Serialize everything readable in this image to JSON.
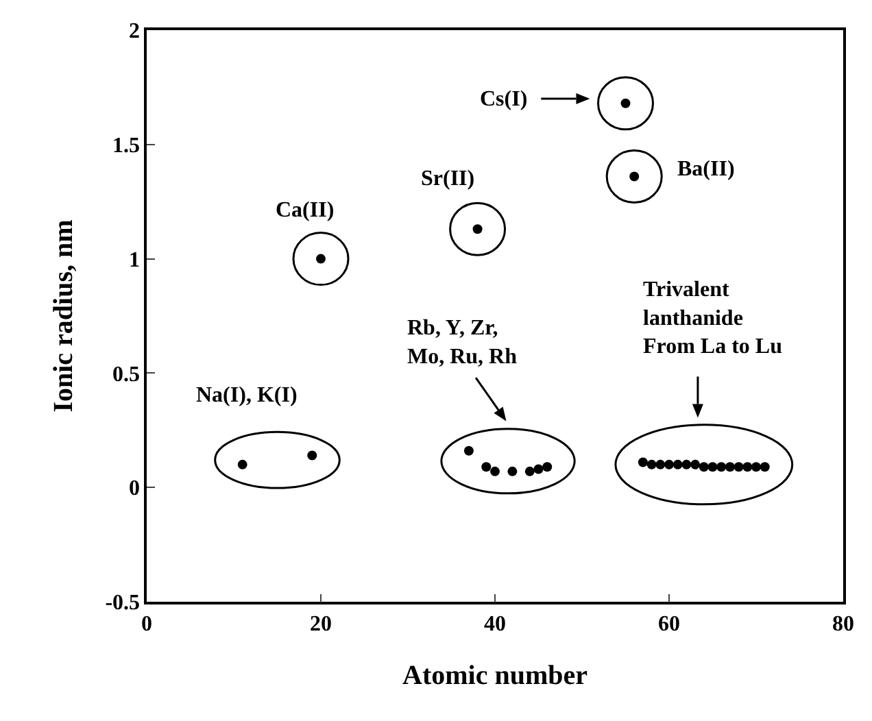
{
  "chart_data": {
    "type": "scatter",
    "xlabel": "Atomic number",
    "ylabel": "Ionic radius, nm",
    "xlim": [
      0,
      80
    ],
    "xticks": [
      0,
      20,
      40,
      60,
      80
    ],
    "ylim": [
      -0.5,
      2
    ],
    "yticks": [
      -0.5,
      0,
      0.5,
      1,
      1.5,
      2
    ],
    "grid": false,
    "marker": "circle",
    "series": [
      {
        "color": "#000000",
        "x": [
          55
        ],
        "values": [
          1.68
        ]
      },
      {
        "color": "#000000",
        "x": [
          56
        ],
        "values": [
          1.36
        ]
      },
      {
        "color": "#000000",
        "x": [
          38
        ],
        "values": [
          1.13
        ]
      },
      {
        "color": "#000000",
        "x": [
          20
        ],
        "values": [
          1.0
        ]
      },
      {
        "color": "#000000",
        "x": [
          37,
          39,
          40,
          42,
          44,
          45,
          46
        ],
        "values": [
          0.16,
          0.09,
          0.07,
          0.07,
          0.07,
          0.08,
          0.09
        ]
      },
      {
        "color": "#000000",
        "x": [
          57,
          58,
          59,
          60,
          61,
          62,
          63,
          64,
          65,
          66,
          67,
          68,
          69,
          70,
          71
        ],
        "values": [
          0.11,
          0.1,
          0.1,
          0.1,
          0.1,
          0.1,
          0.1,
          0.09,
          0.09,
          0.09,
          0.09,
          0.09,
          0.09,
          0.09,
          0.09
        ]
      },
      {
        "color": "#000000",
        "x": [
          11,
          19
        ],
        "values": [
          0.1,
          0.14
        ]
      }
    ],
    "annotations": [
      "Cs(I)",
      "Ba(II)",
      "Sr(II)",
      "Ca(II)",
      "Rb, Y, Zr,\nMo, Ru, Rh",
      "Trivalent\nlanthanide\nFrom La to Lu",
      "Na(I), K(I)"
    ]
  }
}
